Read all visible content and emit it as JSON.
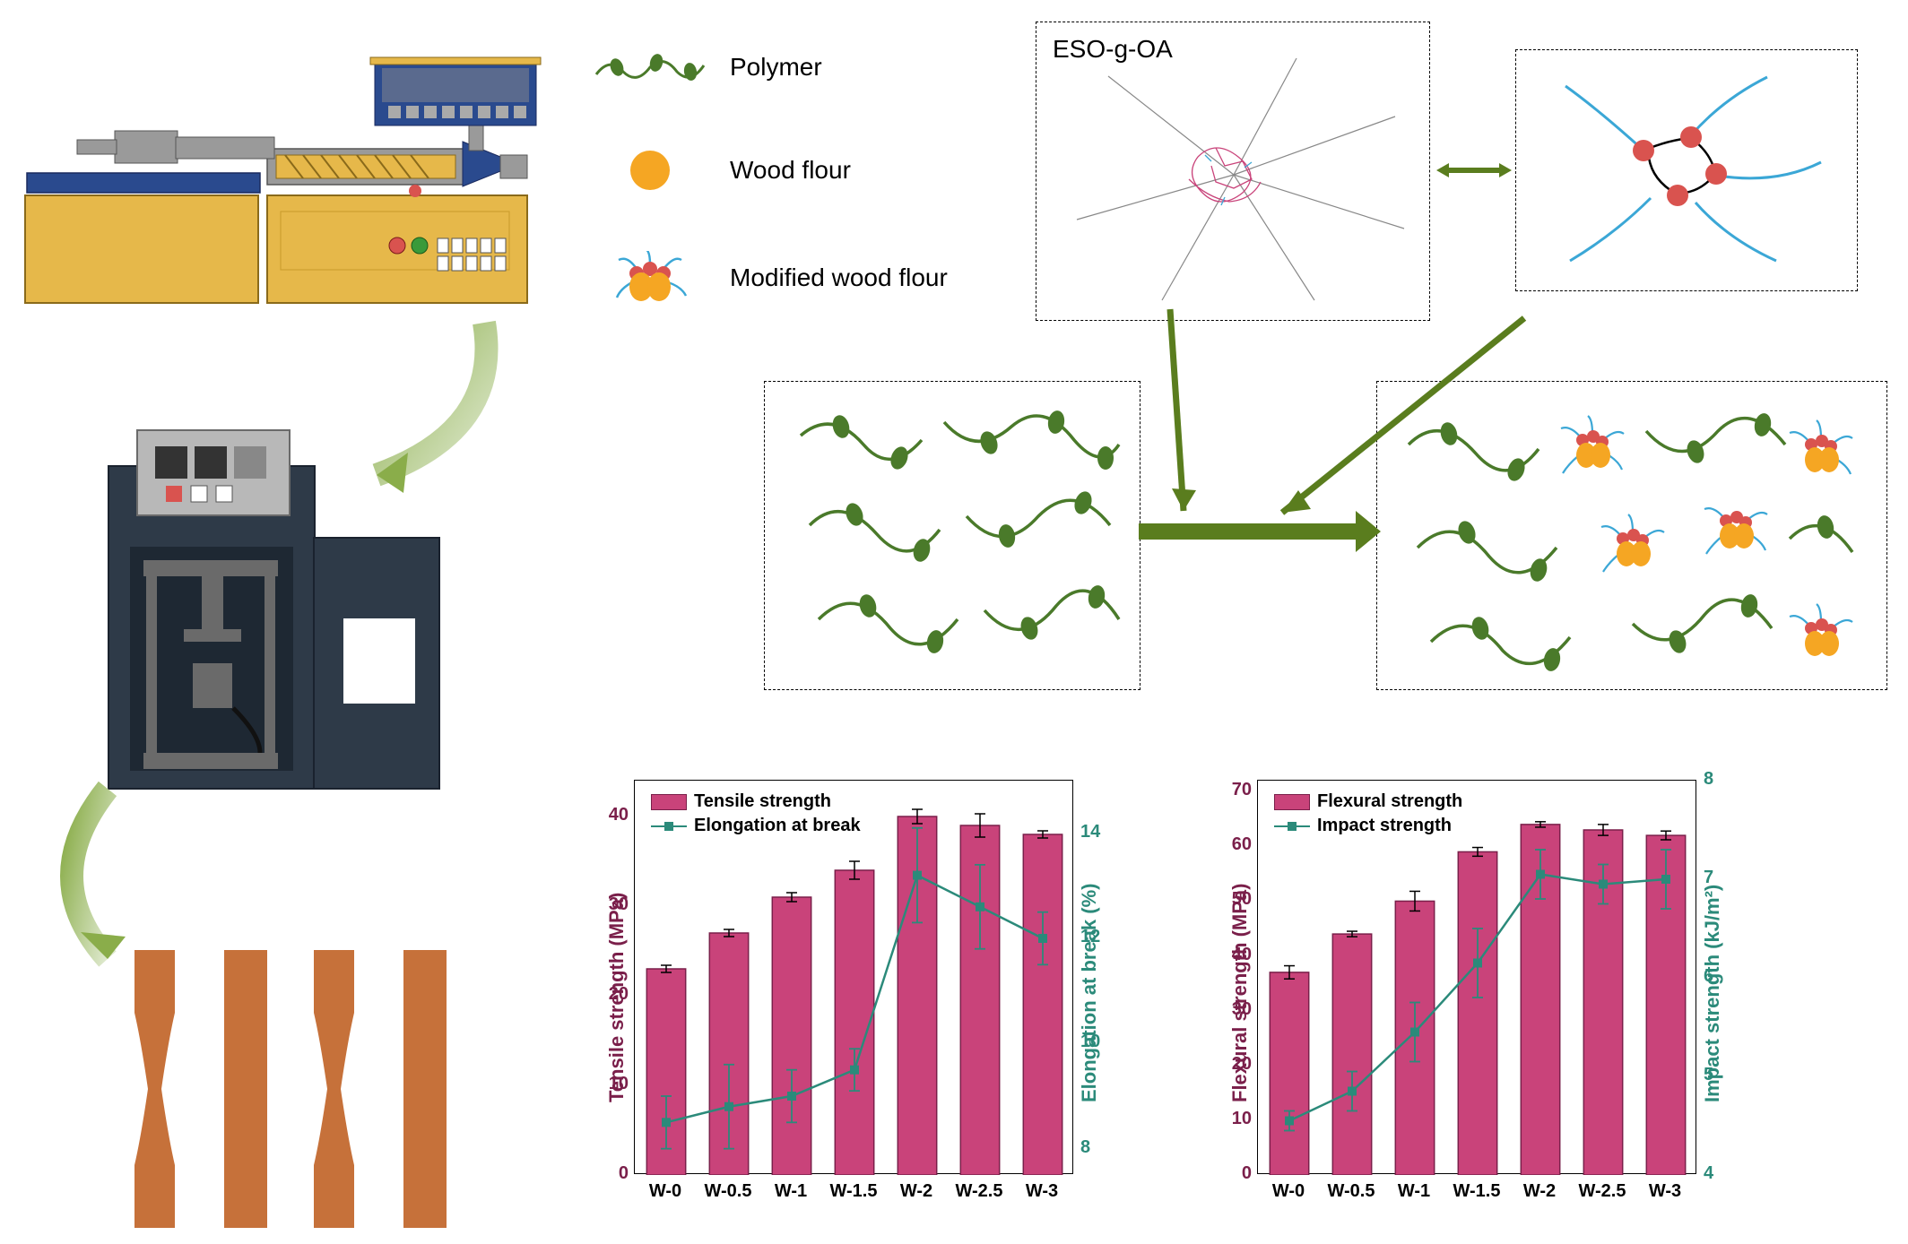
{
  "legend": {
    "polymer": "Polymer",
    "wood_flour": "Wood flour",
    "modified_wood_flour": "Modified wood flour"
  },
  "molecule_label": "ESO-g-OA",
  "colors": {
    "olive": "#6b8e23",
    "dark_olive": "#5a7d1e",
    "polymer_green": "#4a7a2a",
    "wood_orange": "#f5a623",
    "modified_red": "#d9534f",
    "modified_blue": "#3ba7d6",
    "bar_fill": "#c9437a",
    "bar_border": "#7a1f4a",
    "line_teal": "#2b8a7a",
    "axis_left": "#7a1f4a",
    "axis_right": "#2b8a7a",
    "specimen": "#c6713a",
    "extruder_yellow": "#e6b84a",
    "extruder_blue": "#2a4a8e",
    "extruder_gray": "#8a8a8a",
    "press_dark": "#2e3a48",
    "press_panel": "#b8b8b8"
  },
  "chart1": {
    "type": "bar+line",
    "categories": [
      "W-0",
      "W-0.5",
      "W-1",
      "W-1.5",
      "W-2",
      "W-2.5",
      "W-3"
    ],
    "bar_label": "Tensile strength",
    "line_label": "Elongation at break",
    "y1_label": "Tensile strength (MPa)",
    "y2_label": "Elongation at break (%)",
    "y1_ticks": [
      0,
      10,
      20,
      30,
      40
    ],
    "y2_ticks": [
      8,
      10,
      12,
      14
    ],
    "y1_range": [
      0,
      44
    ],
    "y2_range": [
      7.5,
      15
    ],
    "bar_values": [
      23,
      27,
      31,
      34,
      40,
      39,
      38
    ],
    "bar_err": [
      0.4,
      0.4,
      0.5,
      1.0,
      0.8,
      1.3,
      0.4
    ],
    "line_values": [
      8.5,
      8.8,
      9.0,
      9.5,
      13.2,
      12.6,
      12.0
    ],
    "line_err": [
      0.5,
      0.8,
      0.5,
      0.4,
      0.9,
      0.8,
      0.5
    ]
  },
  "chart2": {
    "type": "bar+line",
    "categories": [
      "W-0",
      "W-0.5",
      "W-1",
      "W-1.5",
      "W-2",
      "W-2.5",
      "W-3"
    ],
    "bar_label": "Flexural strength",
    "line_label": "Impact strength",
    "y1_label": "Flexural strength (MPa)",
    "y2_label": "Impact strength (kJ/m²)",
    "y1_ticks": [
      0,
      10,
      20,
      30,
      40,
      50,
      60,
      70
    ],
    "y2_ticks": [
      4,
      5,
      6,
      7,
      8
    ],
    "y1_range": [
      0,
      72
    ],
    "y2_range": [
      4,
      8
    ],
    "bar_values": [
      37,
      44,
      50,
      59,
      64,
      63,
      62
    ],
    "bar_err": [
      1.2,
      0.5,
      1.8,
      0.8,
      0.5,
      1.0,
      0.8
    ],
    "line_values": [
      4.55,
      4.85,
      5.45,
      6.15,
      7.05,
      6.95,
      7.0
    ],
    "line_err": [
      0.1,
      0.2,
      0.3,
      0.35,
      0.25,
      0.2,
      0.3
    ]
  }
}
